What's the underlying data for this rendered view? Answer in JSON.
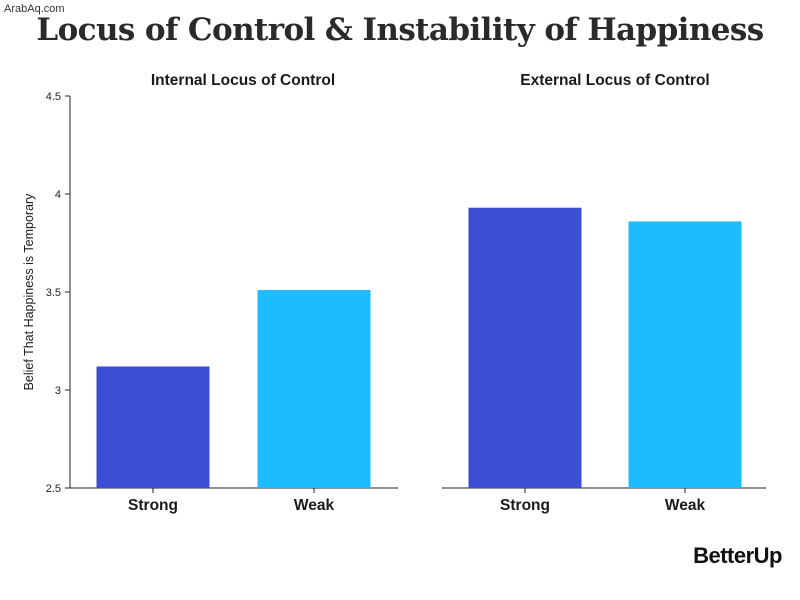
{
  "watermark": "ArabAq.com",
  "title": "Locus of Control & Instability of Happiness",
  "logo": "BetterUp",
  "chart_data": {
    "type": "bar",
    "ylabel": "Belief That Happiness is Temporary",
    "ylim": [
      2.5,
      4.5
    ],
    "yticks": [
      "2.5",
      "3",
      "3.5",
      "4",
      "4.5"
    ],
    "panels": [
      {
        "title": "Internal Locus of Control",
        "categories": [
          "Strong",
          "Weak"
        ],
        "values": [
          3.12,
          3.51
        ]
      },
      {
        "title": "External Locus of Control",
        "categories": [
          "Strong",
          "Weak"
        ],
        "values": [
          3.93,
          3.86
        ]
      }
    ],
    "colors": {
      "Strong": "#3b4dd4",
      "Weak": "#1ebcfe"
    }
  }
}
